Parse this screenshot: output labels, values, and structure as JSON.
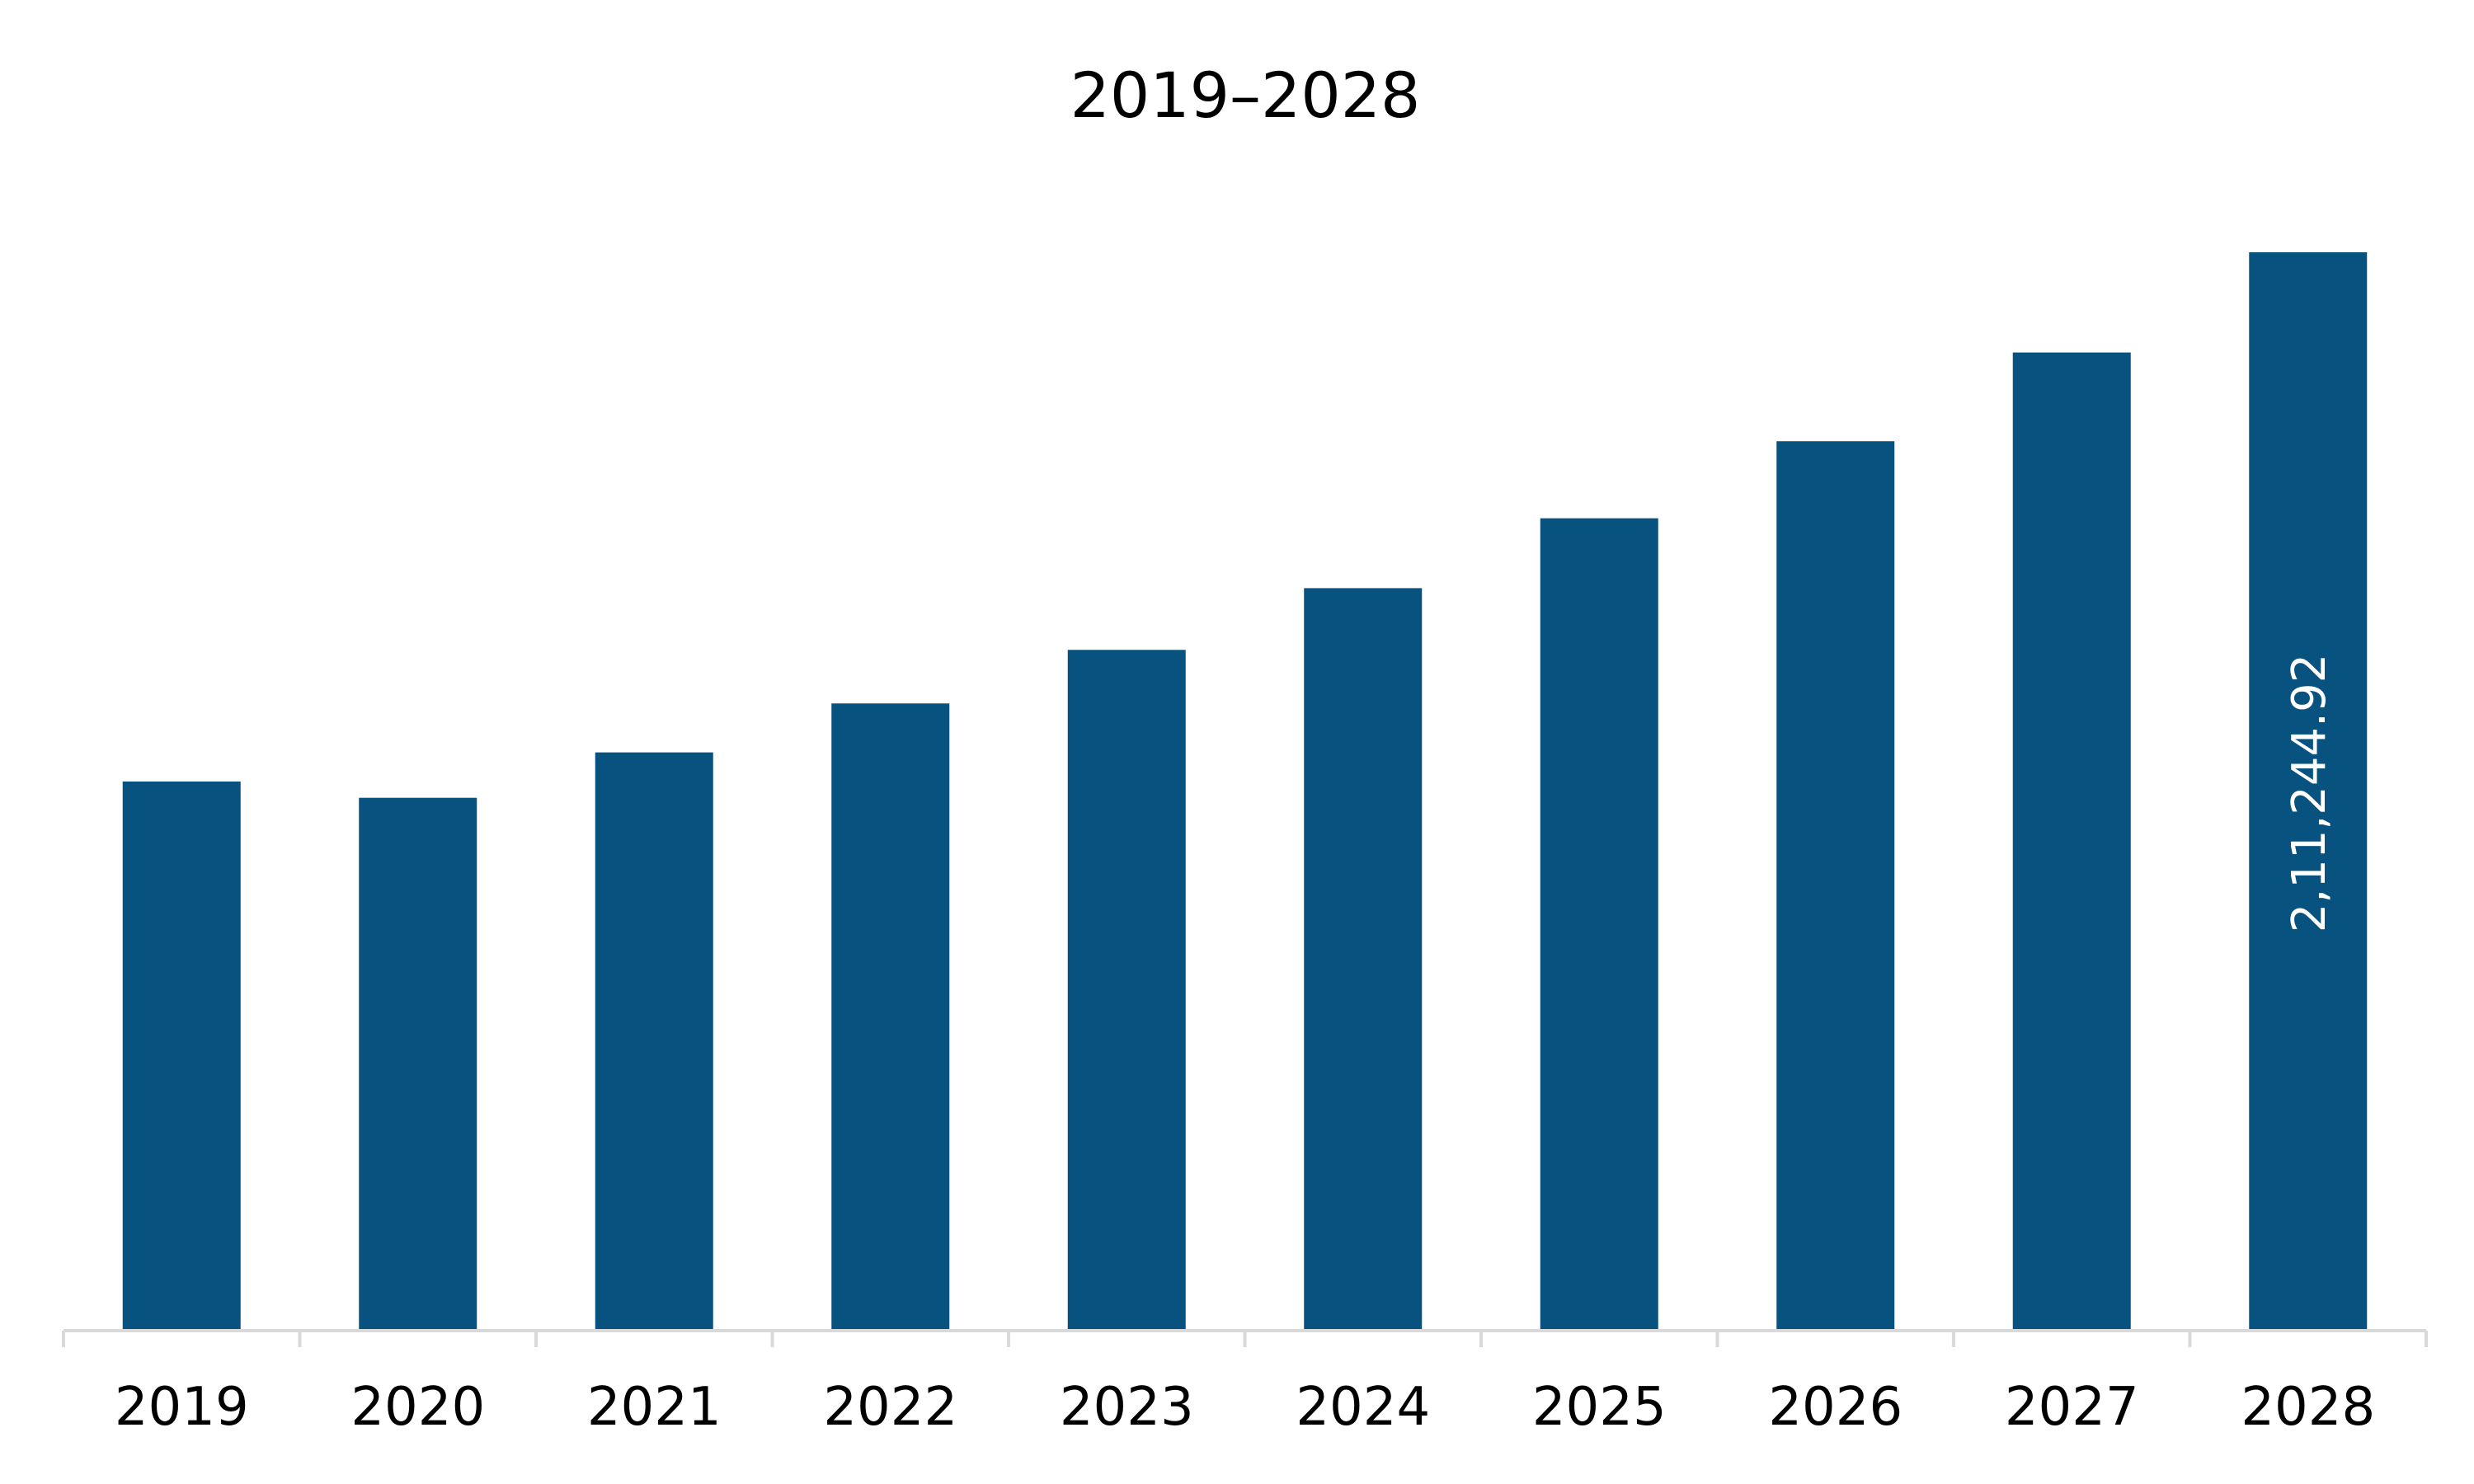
{
  "chart_data": {
    "type": "bar",
    "title": "2019–2028",
    "xlabel": "",
    "ylabel": "",
    "categories": [
      "2019",
      "2020",
      "2021",
      "2022",
      "2023",
      "2024",
      "2025",
      "2026",
      "2027",
      "2028"
    ],
    "values": [
      107500,
      104300,
      113200,
      122800,
      133300,
      145400,
      159100,
      174200,
      191600,
      211244.92
    ],
    "data_labels": [
      "",
      "",
      "",
      "",
      "",
      "",
      "",
      "",
      "",
      "2,11,244.92"
    ],
    "ylim": [
      0,
      211244.92
    ],
    "grid": false,
    "legend": "none",
    "bar_color": "#08527f",
    "data_label_color": "#ffffff",
    "axis_color": "#d9d9d9"
  }
}
